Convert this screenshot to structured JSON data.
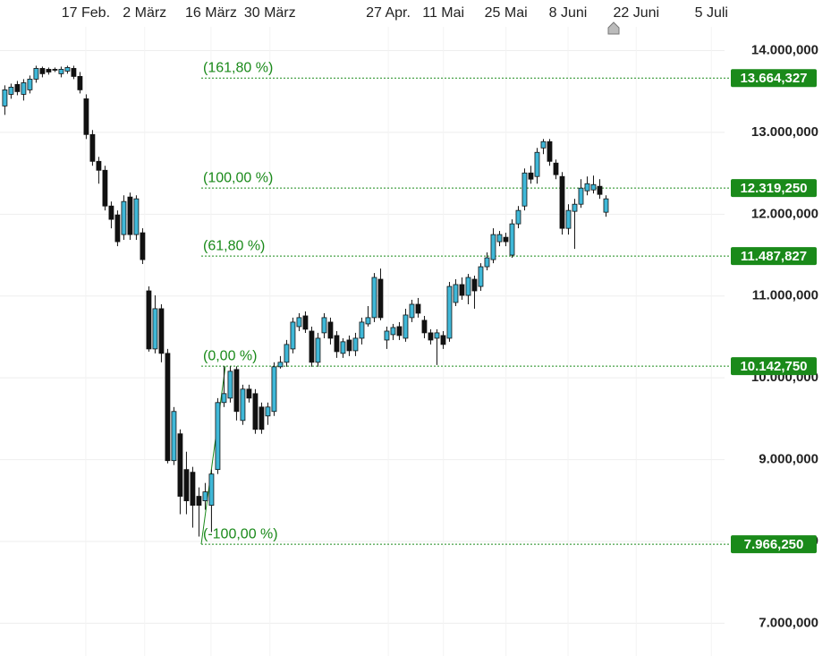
{
  "chart_data": {
    "type": "candlestick",
    "up_color": "#3fb8d8",
    "down_color": "#111111",
    "level_color": "#1a8a1a",
    "categories": [
      null,
      null,
      null,
      null,
      null,
      null,
      null,
      null,
      null,
      null,
      null,
      null,
      null,
      null,
      null,
      null,
      null,
      null,
      null,
      null,
      null,
      null,
      null,
      null,
      null,
      null,
      null,
      null,
      null,
      null,
      null,
      null,
      null,
      null,
      null,
      null,
      null,
      null,
      null,
      null,
      null,
      null,
      null,
      null,
      null,
      null,
      null,
      null,
      null,
      null,
      null,
      null,
      null,
      null,
      null,
      null,
      null,
      null,
      null,
      null,
      null,
      null,
      null,
      null,
      null,
      null,
      null,
      null,
      null,
      null,
      null,
      null,
      null,
      null,
      null,
      null,
      null,
      null,
      null,
      null,
      null,
      null,
      null,
      null,
      null,
      null,
      null,
      null,
      null,
      null,
      null,
      null,
      null,
      null,
      null,
      null,
      null
    ],
    "open": [
      13323,
      13465,
      13586,
      13465,
      13520,
      13651,
      13782,
      13771,
      13771,
      13717,
      13749,
      13782,
      13684,
      13411,
      12974,
      12646,
      12537,
      12100,
      11991,
      11751,
      12210,
      11751,
      11773,
      11063,
      10353,
      10845,
      10299,
      8988,
      9316,
      8879,
      8846,
      8552,
      8497,
      8442,
      8879,
      9698,
      9752,
      10102,
      9479,
      9862,
      9807,
      9643,
      9534,
      9589,
      10135,
      10190,
      10353,
      10626,
      10757,
      10571,
      10190,
      10550,
      10681,
      10517,
      10299,
      10462,
      10331,
      10484,
      10659,
      10736,
      11205,
      10462,
      10528,
      10626,
      10484,
      10736,
      10899,
      10703,
      10550,
      10484,
      10517,
      10484,
      10921,
      11140,
      11008,
      11205,
      11117,
      11358,
      11445,
      11664,
      11718,
      11500,
      11882,
      12100,
      12504,
      12461,
      12810,
      12887,
      12625,
      12461,
      11827,
      12035,
      12122,
      12286,
      12297,
      12341,
      12024
    ],
    "high": [
      13575,
      13596,
      13629,
      13651,
      13695,
      13815,
      13804,
      13793,
      13793,
      13804,
      13815,
      13815,
      13738,
      13465,
      13029,
      12701,
      12592,
      12155,
      12046,
      12231,
      12264,
      12231,
      11828,
      11118,
      11008,
      10899,
      10353,
      9643,
      9370,
      9097,
      8912,
      8661,
      8715,
      8879,
      9752,
      10141,
      10141,
      10141,
      9916,
      9916,
      9862,
      9698,
      9698,
      10190,
      10266,
      10463,
      10736,
      10790,
      10812,
      10626,
      10550,
      10790,
      10736,
      10571,
      10484,
      10517,
      10550,
      10736,
      10877,
      11281,
      11336,
      10626,
      10659,
      10681,
      10844,
      10954,
      10976,
      10757,
      10594,
      10594,
      10571,
      11172,
      11205,
      11227,
      11270,
      11249,
      11401,
      11533,
      11828,
      11795,
      11773,
      11937,
      12100,
      12559,
      12592,
      12810,
      12919,
      12919,
      12668,
      12515,
      12122,
      12188,
      12428,
      12461,
      12472,
      12428,
      12231
    ],
    "low": [
      13214,
      13411,
      13454,
      13389,
      13476,
      13607,
      13673,
      13706,
      13738,
      13673,
      13717,
      13651,
      13476,
      12919,
      12592,
      12373,
      12046,
      11827,
      11609,
      11686,
      11686,
      11686,
      11391,
      10320,
      10299,
      10190,
      8955,
      8934,
      8333,
      8333,
      8169,
      8060,
      8388,
      8115,
      8824,
      9643,
      9698,
      9479,
      9425,
      9698,
      9316,
      9316,
      9425,
      9534,
      10113,
      10135,
      10299,
      10571,
      10549,
      10135,
      10135,
      10484,
      10408,
      10244,
      10244,
      10266,
      10266,
      10408,
      10626,
      10681,
      10703,
      10353,
      10462,
      10462,
      10441,
      10681,
      10736,
      10484,
      10408,
      10157,
      10353,
      10441,
      10877,
      10954,
      10899,
      10845,
      11063,
      11314,
      11401,
      11609,
      11609,
      11467,
      11828,
      12046,
      12373,
      12373,
      12734,
      12592,
      12428,
      11751,
      11751,
      11576,
      12078,
      12231,
      12253,
      12188,
      11969
    ],
    "close": [
      13520,
      13553,
      13498,
      13607,
      13651,
      13782,
      13717,
      13738,
      13760,
      13771,
      13793,
      13684,
      13520,
      12974,
      12646,
      12537,
      12100,
      11937,
      11664,
      12155,
      11751,
      12188,
      11445,
      10353,
      10845,
      10299,
      8988,
      9589,
      8552,
      8497,
      8442,
      8442,
      8606,
      8824,
      9698,
      9807,
      10080,
      9589,
      9862,
      9752,
      9370,
      9370,
      9643,
      10135,
      10190,
      10408,
      10681,
      10736,
      10594,
      10190,
      10484,
      10736,
      10484,
      10320,
      10441,
      10331,
      10484,
      10681,
      10736,
      11227,
      10736,
      10571,
      10615,
      10517,
      10768,
      10899,
      10790,
      10550,
      10462,
      10550,
      10408,
      11117,
      11140,
      11008,
      11227,
      11063,
      11358,
      11467,
      11751,
      11751,
      11664,
      11882,
      12046,
      12504,
      12428,
      12756,
      12887,
      12646,
      12483,
      11827,
      12046,
      12122,
      12319,
      12373,
      12362,
      12242,
      12188
    ],
    "xlim": [
      -0.7,
      115
    ],
    "xticks": [
      {
        "value": 13,
        "label": "17 Feb."
      },
      {
        "value": 22.4,
        "label": "2 März"
      },
      {
        "value": 33,
        "label": "16 März"
      },
      {
        "value": 42.4,
        "label": "30 März"
      },
      {
        "value": 61.3,
        "label": "27 Apr."
      },
      {
        "value": 70.1,
        "label": "11 Mai"
      },
      {
        "value": 80.1,
        "label": "25 Mai"
      },
      {
        "value": 90,
        "label": "8 Juni"
      },
      {
        "value": 100.9,
        "label": "22 Juni"
      },
      {
        "value": 112.9,
        "label": "5 Juli"
      }
    ],
    "ylim": [
      6600,
      14290
    ],
    "yticks": [
      {
        "value": 7000,
        "label": "7.000,000"
      },
      {
        "value": 8000,
        "label": "8.000,000"
      },
      {
        "value": 9000,
        "label": "9.000,000"
      },
      {
        "value": 10000,
        "label": "10.000,000"
      },
      {
        "value": 11000,
        "label": "11.000,000"
      },
      {
        "value": 12000,
        "label": "12.000,000"
      },
      {
        "value": 13000,
        "label": "13.000,000"
      },
      {
        "value": 14000,
        "label": "14.000,000"
      }
    ],
    "grid": true,
    "levels": [
      {
        "label": "(161,80 %)",
        "value": 13664.327,
        "value_label": "13.664,327"
      },
      {
        "label": "(100,00 %)",
        "value": 12319.25,
        "value_label": "12.319,250"
      },
      {
        "label": "(61,80 %)",
        "value": 11487.827,
        "value_label": "11.487,827"
      },
      {
        "label": "(0,00 %)",
        "value": 10142.75,
        "value_label": "10.142,750"
      },
      {
        "label": "(-100,00 %)",
        "value": 7966.25,
        "value_label": "7.966,250"
      }
    ]
  }
}
